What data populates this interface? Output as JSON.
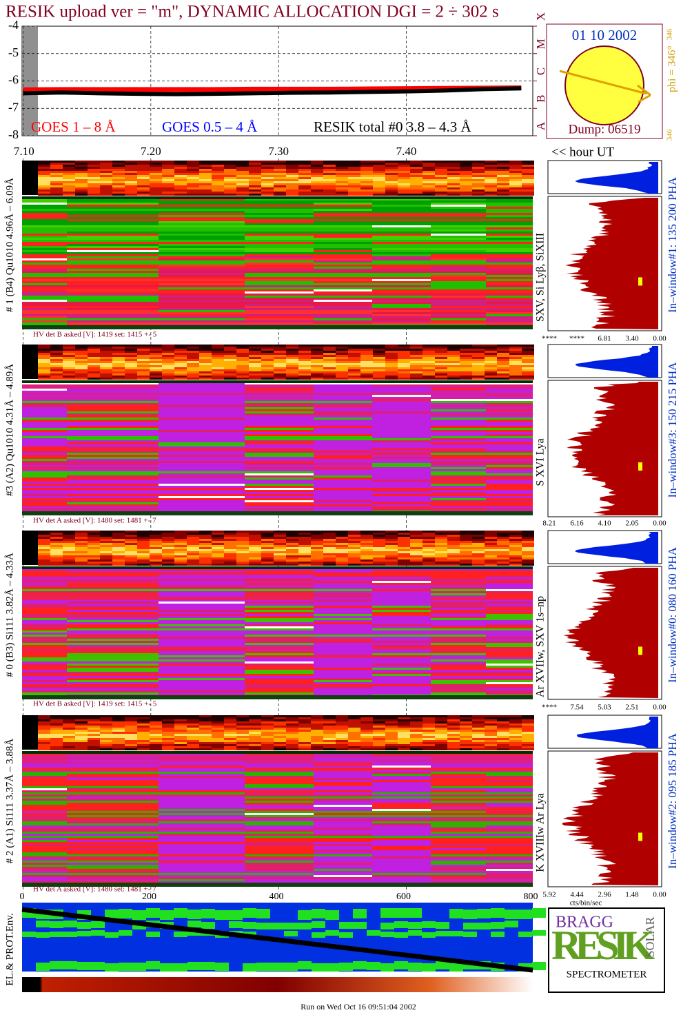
{
  "title": "RESIK upload ver = \"m\", DYNAMIC ALLOCATION  DGI =   2 ÷ 302 s",
  "chart_data": {
    "type": "line",
    "x": [
      7.1,
      7.13,
      7.16,
      7.19,
      7.22,
      7.25,
      7.28,
      7.31,
      7.34,
      7.37,
      7.4,
      7.43,
      7.46,
      7.49
    ],
    "series": [
      {
        "name": "GOES 1 – 8 Å",
        "color": "#ff0000",
        "values": [
          -6.32,
          -6.31,
          -6.31,
          -6.31,
          -6.31,
          -6.31,
          -6.3,
          -6.3,
          -6.3,
          -6.29,
          -6.28,
          -6.27,
          -6.26,
          -6.25
        ]
      },
      {
        "name": "GOES 0.5 – 4 Å",
        "color": "#0000ff",
        "values": [
          null,
          null,
          null,
          null,
          null,
          null,
          null,
          null,
          null,
          null,
          null,
          null,
          null,
          null
        ]
      },
      {
        "name": "RESIK total #0  3.8 – 4.3 Å",
        "color": "#000000",
        "values": [
          -6.45,
          -6.42,
          -6.45,
          -6.47,
          -6.48,
          -6.47,
          -6.45,
          -6.43,
          -6.42,
          -6.4,
          -6.38,
          -6.35,
          -6.3,
          -6.27
        ]
      }
    ],
    "xlim": [
      7.1,
      7.499
    ],
    "ylim": [
      -8,
      -4
    ],
    "xticks": [
      {
        "value": 7.1,
        "label": "7.10"
      },
      {
        "value": 7.2,
        "label": "7.20"
      },
      {
        "value": 7.3,
        "label": "7.30"
      },
      {
        "value": 7.4,
        "label": "7.40"
      }
    ],
    "yticks": [
      -4,
      -5,
      -6,
      -7,
      -8
    ],
    "y2ticks": [
      {
        "value": -8,
        "label": "A"
      },
      {
        "value": -7,
        "label": "B"
      },
      {
        "value": -6,
        "label": "C"
      },
      {
        "value": -5,
        "label": "M"
      },
      {
        "value": -4,
        "label": "X"
      }
    ],
    "grid": true
  },
  "sun": {
    "date": "01 10 2002",
    "dump": "Dump: 06519",
    "phi": "phi = 346°",
    "phi_sup": "346",
    "corner": "346"
  },
  "hour_label": "<< hour UT",
  "panels": [
    {
      "label": "# 1 (B4) Qu1010 4.96Å – 6.09Å",
      "hv": "HV det B asked [V]:  1419 set:  1415  +-    5",
      "lines": "SXV, Si Lyβ, SiXIII",
      "window": "In–window#1:  135 200 PHA",
      "hist_ticks": [
        "****",
        "****",
        "6.81",
        "3.40",
        "0.00"
      ]
    },
    {
      "label": "#3 (A2) Qu1010  4.31Å – 4.89Å",
      "hv": "HV det A asked [V]:  1480 set:  1481  +-    7",
      "lines": "S XVI Lya",
      "window": "In–window#3:  150 215 PHA",
      "hist_ticks": [
        "8.21",
        "6.16",
        "4.10",
        "2.05",
        "0.00"
      ]
    },
    {
      "label": "# 0 (B3) Si111  3.82Å – 4.33Å",
      "hv": "HV det B asked [V]:  1419 set:  1415  +-    5",
      "lines": "Ar XVIIw,  SXV 1s–np",
      "window": "In–window#0:  080 160 PHA",
      "hist_ticks": [
        "****",
        "7.54",
        "5.03",
        "2.51",
        "0.00"
      ]
    },
    {
      "label": "# 2 (A1) Si111  3.37Å – 3.88Å",
      "hv": "HV det A asked [V]:  1480 set:  1481  +-    7",
      "lines": "K XVIIIw  Ar Lya",
      "window": "In–window#2:  095 185 PHA",
      "hist_ticks": [
        "5.92",
        "4.44",
        "2.96",
        "1.48",
        "0.00"
      ]
    }
  ],
  "bottom": {
    "axis": [
      0,
      200,
      400,
      600,
      800
    ],
    "label": "EL.& PROT.Env.",
    "units": "cts/bin/sec",
    "run": "Run on Wed Oct 16 09:51:04 2002"
  },
  "logo": {
    "small": "BRAGG",
    "big": "RESIK",
    "side": "SOLAR",
    "name": "SPECTROMETER"
  }
}
